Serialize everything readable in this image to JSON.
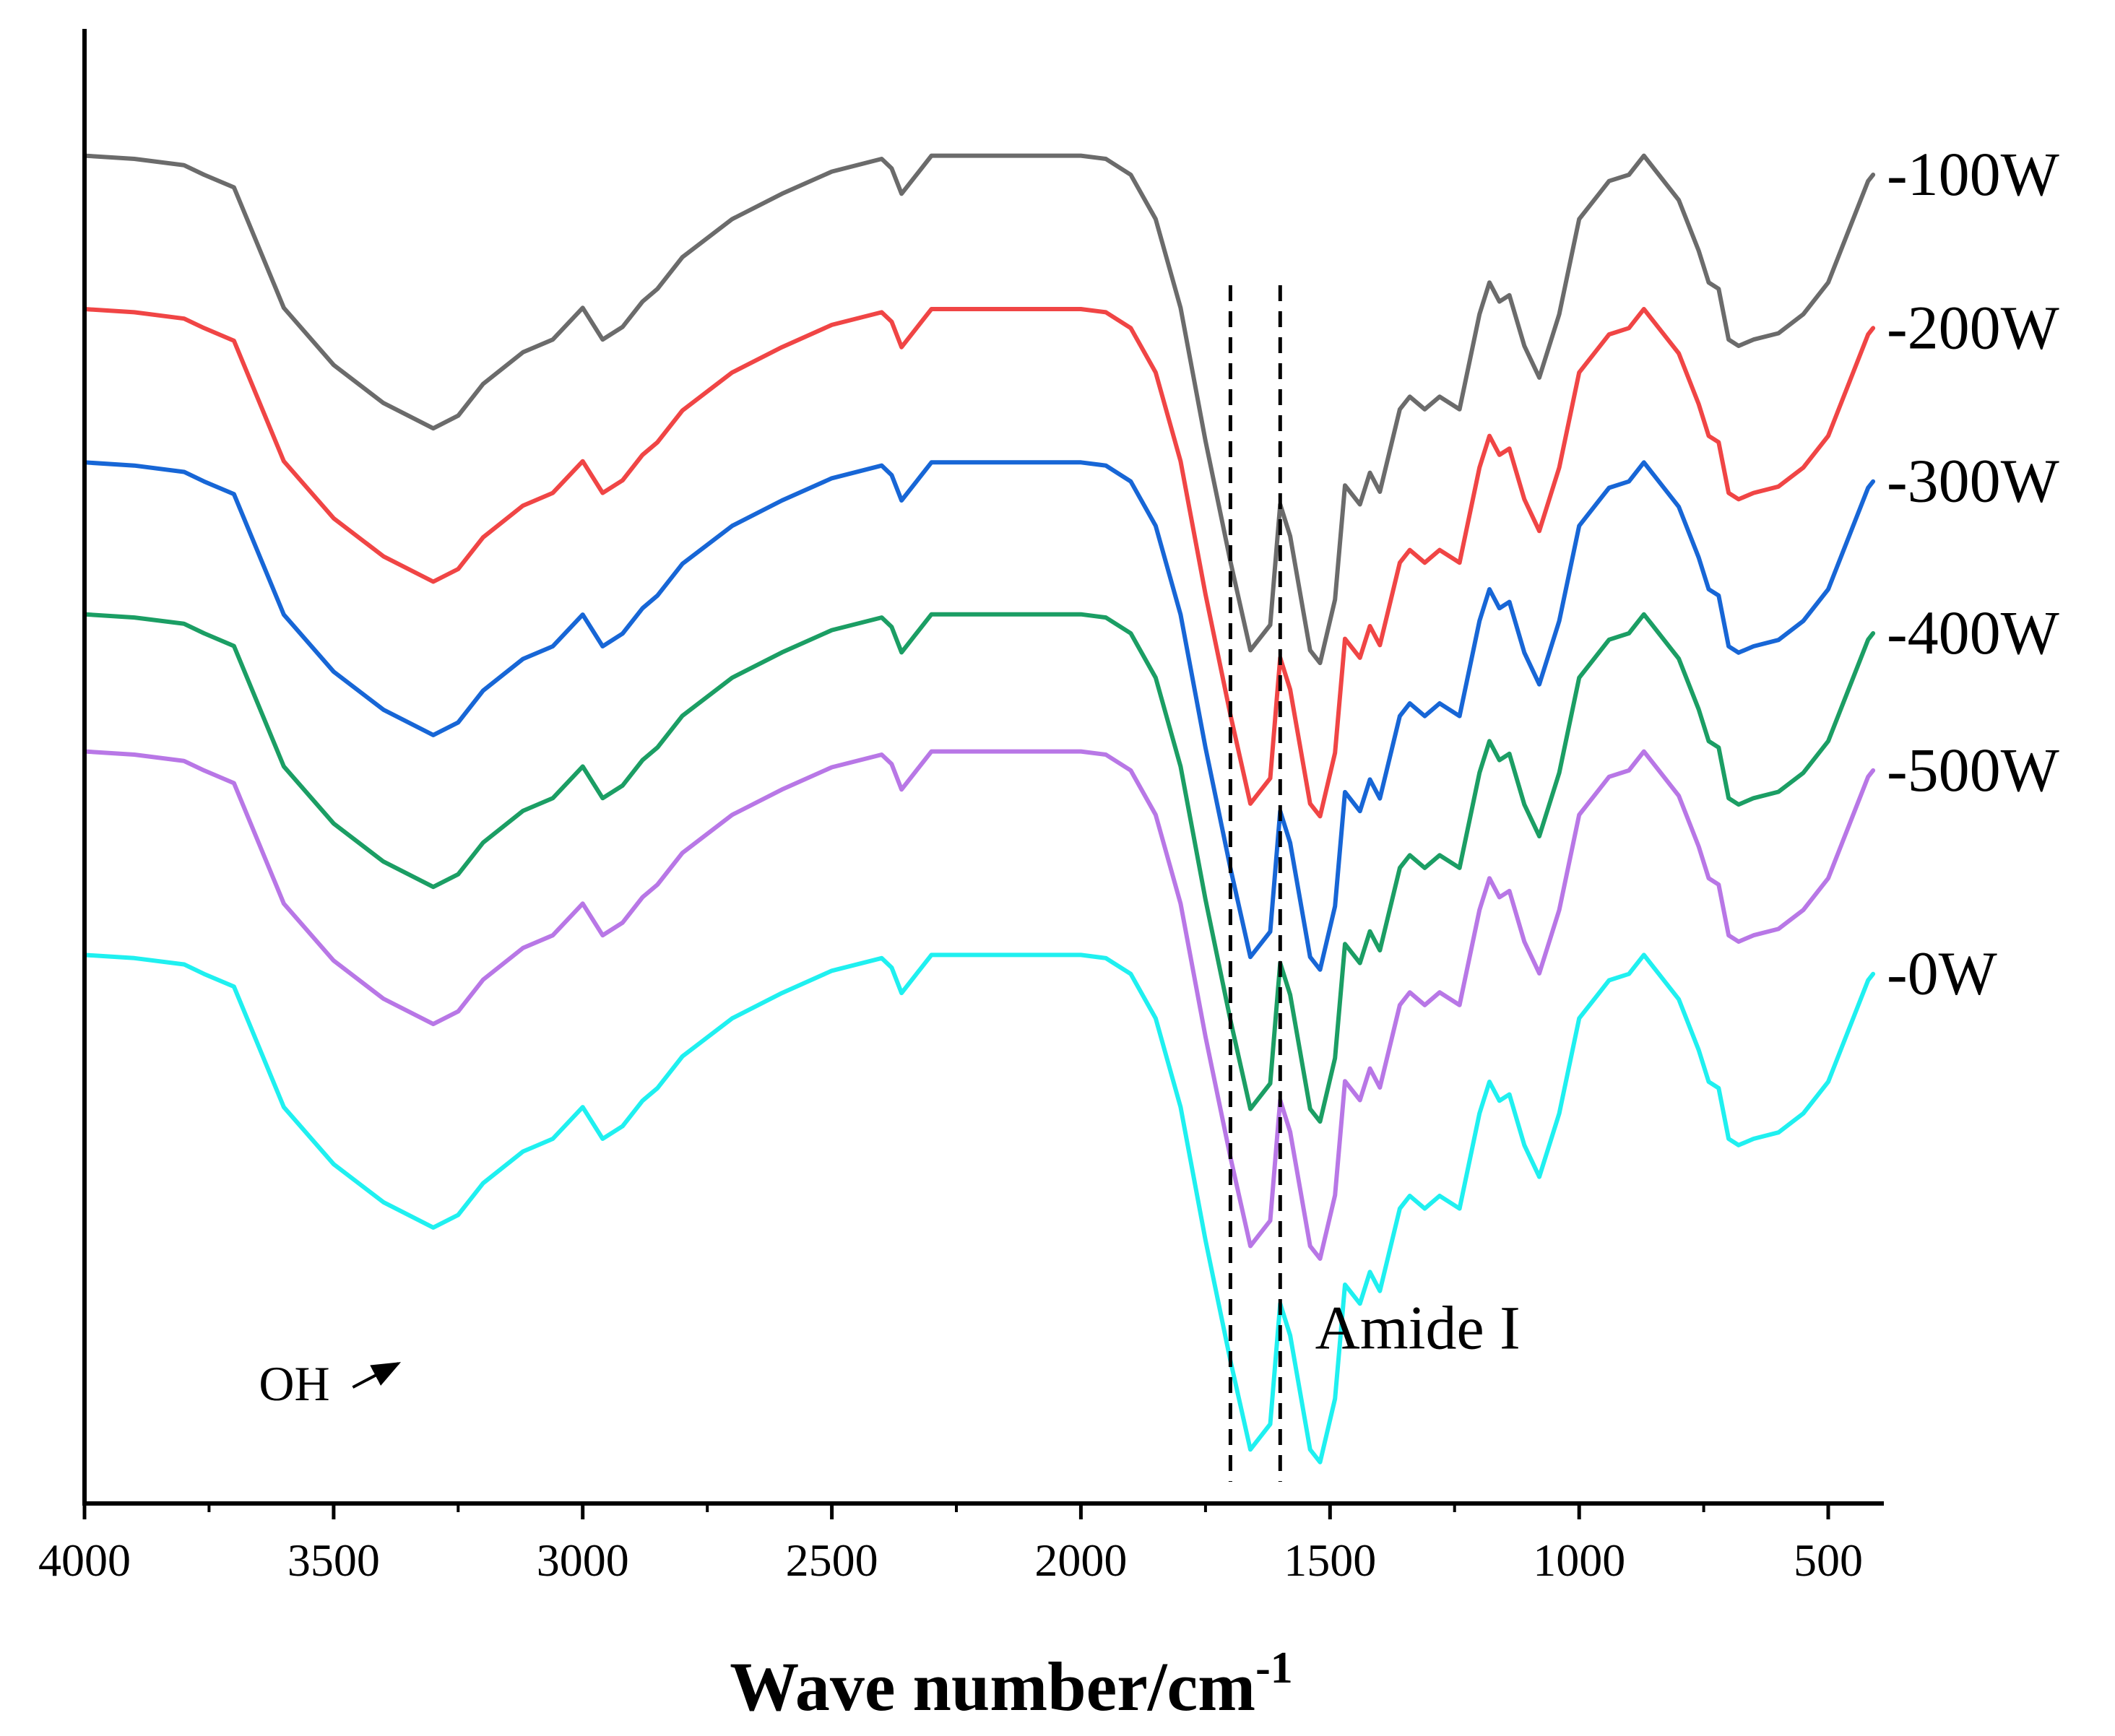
{
  "chart_data": {
    "type": "line",
    "title": "",
    "xlabel": "Wave number/cm",
    "xlabel_sup": "-1",
    "ylabel": "",
    "xlim": [
      4000,
      400
    ],
    "x_reversed": true,
    "grid": false,
    "x_ticks": [
      4000,
      3500,
      3000,
      2500,
      2000,
      1500,
      1000,
      500
    ],
    "x_tick_labels": [
      "4000",
      "3500",
      "3000",
      "2500",
      "2000",
      "1500",
      "1000",
      "500"
    ],
    "ylim": [
      0,
      1
    ],
    "shape_x": [
      4000,
      3900,
      3800,
      3760,
      3700,
      3600,
      3500,
      3400,
      3300,
      3250,
      3200,
      3120,
      3060,
      3000,
      2960,
      2920,
      2880,
      2850,
      2800,
      2700,
      2600,
      2500,
      2400,
      2380,
      2360,
      2330,
      2300,
      2250,
      2200,
      2100,
      2000,
      1950,
      1900,
      1850,
      1800,
      1750,
      1700,
      1660,
      1620,
      1600,
      1580,
      1540,
      1520,
      1490,
      1470,
      1440,
      1420,
      1400,
      1360,
      1340,
      1310,
      1280,
      1240,
      1200,
      1180,
      1160,
      1140,
      1110,
      1080,
      1060,
      1040,
      1000,
      960,
      940,
      900,
      870,
      840,
      800,
      760,
      740,
      720,
      700,
      680,
      650,
      600,
      550,
      500,
      450,
      420,
      410
    ],
    "offset_profile": [
      0,
      0.005,
      0.015,
      0.03,
      0.05,
      0.24,
      0.33,
      0.39,
      0.43,
      0.41,
      0.36,
      0.31,
      0.29,
      0.24,
      0.29,
      0.27,
      0.23,
      0.21,
      0.16,
      0.1,
      0.06,
      0.025,
      0.005,
      0.02,
      0.06,
      0.03,
      0,
      0,
      0,
      0,
      0,
      0.005,
      0.03,
      0.1,
      0.24,
      0.45,
      0.64,
      0.78,
      0.74,
      0.55,
      0.6,
      0.78,
      0.8,
      0.7,
      0.52,
      0.55,
      0.5,
      0.53,
      0.4,
      0.38,
      0.4,
      0.38,
      0.4,
      0.25,
      0.2,
      0.23,
      0.22,
      0.3,
      0.35,
      0.3,
      0.25,
      0.1,
      0.06,
      0.04,
      0.03,
      0,
      0.03,
      0.07,
      0.15,
      0.2,
      0.21,
      0.29,
      0.3,
      0.29,
      0.28,
      0.25,
      0.2,
      0.1,
      0.04,
      0.03
    ],
    "series": [
      {
        "name": "-100W",
        "color": "#6b6b6b",
        "baseline": 0.914,
        "scale": 1.0
      },
      {
        "name": "-200W",
        "color": "#f04545",
        "baseline": 0.81,
        "scale": 1.0
      },
      {
        "name": "-300W",
        "color": "#1766d6",
        "baseline": 0.706,
        "scale": 1.0
      },
      {
        "name": "-400W",
        "color": "#1b9e64",
        "baseline": 0.603,
        "scale": 1.0
      },
      {
        "name": "-500W",
        "color": "#b877e6",
        "baseline": 0.51,
        "scale": 1.0
      },
      {
        "name": "-0W",
        "color": "#1ff0f0",
        "baseline": 0.372,
        "scale": 1.0
      }
    ],
    "reference_lines": [
      1700,
      1600
    ],
    "annotations": [
      {
        "text": "OH",
        "x": 3650,
        "y": 0.07,
        "arrow_to_x": 3370,
        "arrow_to_y": 0.095
      },
      {
        "text": "Amide I",
        "x": 1530,
        "y": 0.105
      }
    ]
  }
}
